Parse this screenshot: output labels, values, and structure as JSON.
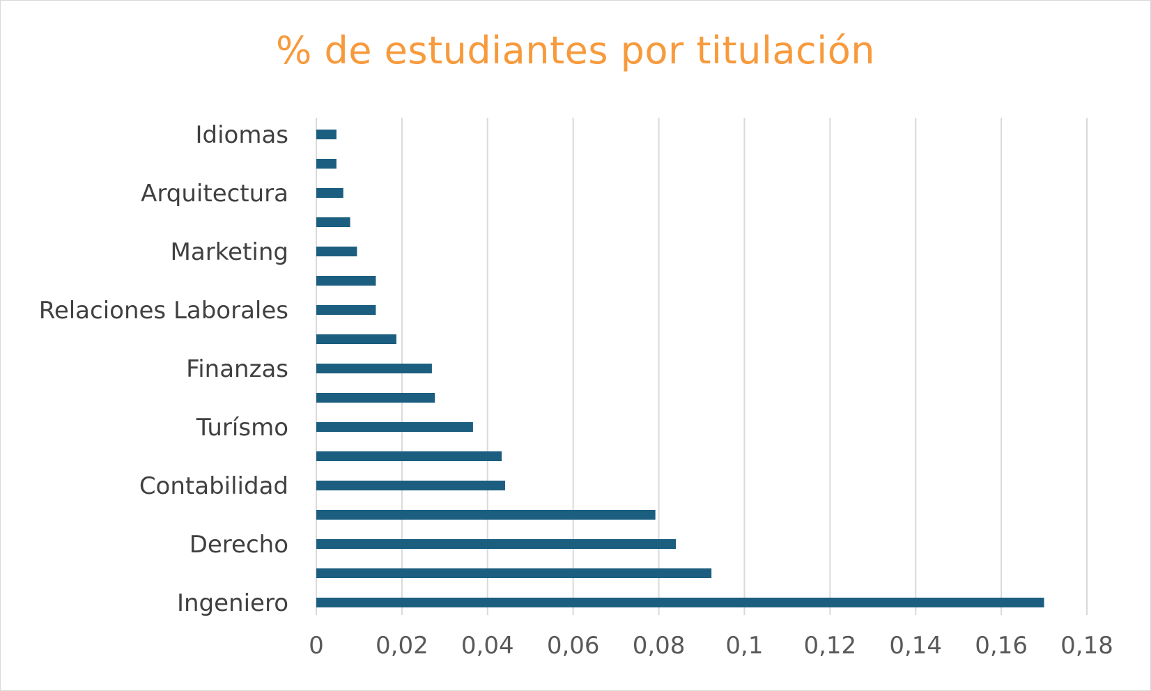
{
  "chart_data": {
    "type": "bar",
    "orientation": "horizontal",
    "title": "% de estudiantes por titulación",
    "xlabel": "",
    "ylabel": "",
    "xlim": [
      0,
      0.18
    ],
    "x_ticks": [
      "0",
      "0,02",
      "0,04",
      "0,06",
      "0,08",
      "0,1",
      "0,12",
      "0,14",
      "0,16",
      "0,18"
    ],
    "x_tick_values": [
      0,
      0.02,
      0.04,
      0.06,
      0.08,
      0.1,
      0.12,
      0.14,
      0.16,
      0.18
    ],
    "grid": "vertical",
    "legend": "none",
    "categories": [
      "Idiomas",
      "",
      "Arquitectura",
      "",
      "Marketing",
      "",
      "Relaciones Laborales",
      "",
      "Finanzas",
      "",
      "Turísmo",
      "",
      "Contabilidad",
      "",
      "Derecho",
      "",
      "Ingeniero"
    ],
    "values": [
      0.0047,
      0.0047,
      0.0063,
      0.0079,
      0.0095,
      0.0139,
      0.0139,
      0.0187,
      0.027,
      0.0277,
      0.0366,
      0.0433,
      0.0441,
      0.0792,
      0.084,
      0.0923,
      0.17
    ],
    "colors": {
      "bar": "#1b5e80",
      "grid": "#d9d9d9",
      "title": "#f79a3c"
    }
  }
}
